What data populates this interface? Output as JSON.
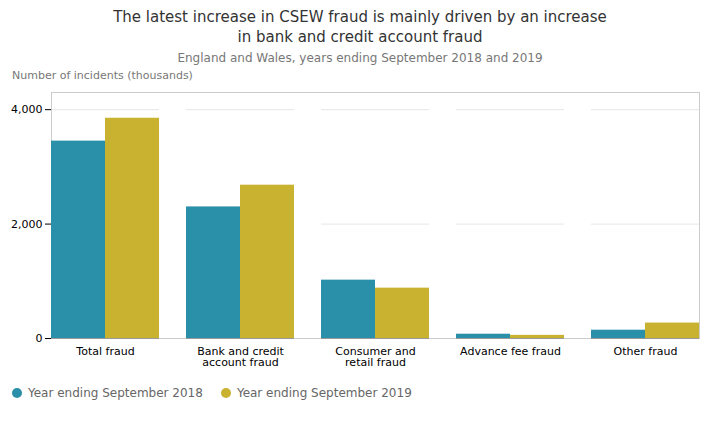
{
  "chart_data": {
    "type": "bar",
    "title": "The latest increase in CSEW fraud is mainly driven by an increase\nin bank and credit account fraud",
    "subtitle": "England and Wales, years ending September 2018 and 2019",
    "ylabel": "Number of incidents (thousands)",
    "categories": [
      "Total fraud",
      "Bank and credit\naccount fraud",
      "Consumer and\nretail fraud",
      "Advance fee fraud",
      "Other fraud"
    ],
    "series": [
      {
        "name": "Year ending September 2018",
        "color": "#2a8fa8",
        "values": [
          3450,
          2300,
          1020,
          75,
          145
        ]
      },
      {
        "name": "Year ending September 2019",
        "color": "#c9b230",
        "values": [
          3850,
          2680,
          880,
          55,
          270
        ]
      }
    ],
    "ylim": [
      0,
      4300
    ],
    "yticks": [
      0,
      {
        "value": 2000,
        "label": "2,000"
      },
      {
        "value": 4000,
        "label": "4,000"
      }
    ],
    "grid": true,
    "legend": "lower left"
  }
}
